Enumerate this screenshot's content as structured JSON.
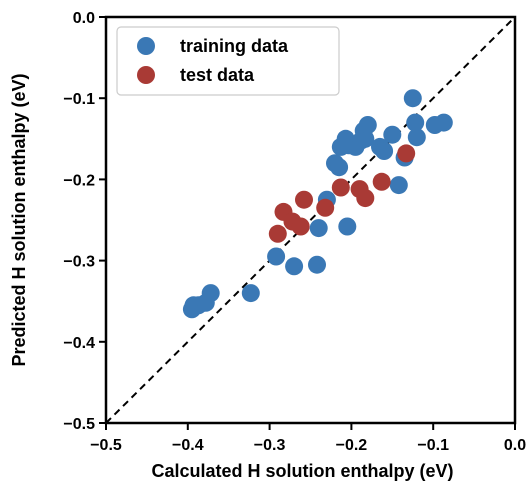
{
  "chart_data": {
    "type": "scatter",
    "title": "",
    "xlabel": "Calculated H solution enthalpy (eV)",
    "ylabel": "Predicted H solution enthalpy (eV)",
    "xlim": [
      -0.5,
      0.0
    ],
    "ylim": [
      -0.5,
      0.0
    ],
    "xticks": [
      "−0.5",
      "−0.4",
      "−0.3",
      "−0.2",
      "−0.1",
      "0.0"
    ],
    "yticks": [
      "−0.5",
      "−0.4",
      "−0.3",
      "−0.2",
      "−0.1",
      "0.0"
    ],
    "xtick_values": [
      -0.5,
      -0.4,
      -0.3,
      -0.2,
      -0.1,
      0.0
    ],
    "ytick_values": [
      -0.5,
      -0.4,
      -0.3,
      -0.2,
      -0.1,
      0.0
    ],
    "grid": false,
    "legend_position": "top-left",
    "reference_line": {
      "from": [
        -0.5,
        -0.5
      ],
      "to": [
        0.0,
        0.0
      ],
      "style": "dashed",
      "color": "#000000"
    },
    "series": [
      {
        "name": "training data",
        "color": "#3a78b5",
        "points": [
          [
            -0.395,
            -0.36
          ],
          [
            -0.393,
            -0.355
          ],
          [
            -0.387,
            -0.355
          ],
          [
            -0.378,
            -0.352
          ],
          [
            -0.372,
            -0.34
          ],
          [
            -0.323,
            -0.34
          ],
          [
            -0.292,
            -0.295
          ],
          [
            -0.27,
            -0.307
          ],
          [
            -0.242,
            -0.305
          ],
          [
            -0.24,
            -0.26
          ],
          [
            -0.23,
            -0.225
          ],
          [
            -0.22,
            -0.18
          ],
          [
            -0.215,
            -0.185
          ],
          [
            -0.213,
            -0.16
          ],
          [
            -0.207,
            -0.15
          ],
          [
            -0.203,
            -0.158
          ],
          [
            -0.205,
            -0.258
          ],
          [
            -0.195,
            -0.16
          ],
          [
            -0.188,
            -0.152
          ],
          [
            -0.185,
            -0.14
          ],
          [
            -0.183,
            -0.15
          ],
          [
            -0.18,
            -0.133
          ],
          [
            -0.165,
            -0.16
          ],
          [
            -0.16,
            -0.165
          ],
          [
            -0.15,
            -0.145
          ],
          [
            -0.142,
            -0.207
          ],
          [
            -0.135,
            -0.173
          ],
          [
            -0.125,
            -0.1
          ],
          [
            -0.122,
            -0.13
          ],
          [
            -0.12,
            -0.148
          ],
          [
            -0.098,
            -0.133
          ],
          [
            -0.087,
            -0.13
          ]
        ]
      },
      {
        "name": "test data",
        "color": "#a93a35",
        "points": [
          [
            -0.29,
            -0.267
          ],
          [
            -0.283,
            -0.24
          ],
          [
            -0.272,
            -0.252
          ],
          [
            -0.262,
            -0.258
          ],
          [
            -0.258,
            -0.225
          ],
          [
            -0.232,
            -0.235
          ],
          [
            -0.213,
            -0.21
          ],
          [
            -0.19,
            -0.212
          ],
          [
            -0.183,
            -0.223
          ],
          [
            -0.163,
            -0.203
          ],
          [
            -0.133,
            -0.168
          ]
        ]
      }
    ]
  }
}
